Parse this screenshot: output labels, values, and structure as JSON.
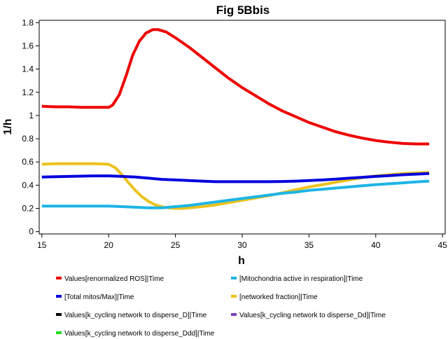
{
  "chart_data": {
    "type": "line",
    "title": "Fig 5Bbis",
    "xlabel": "h",
    "ylabel": "1/h",
    "xlim": [
      14.8,
      45.2
    ],
    "ylim": [
      -0.02,
      1.82
    ],
    "xticks": [
      15,
      20,
      25,
      30,
      35,
      40,
      45
    ],
    "yticks": [
      0,
      0.2,
      0.4,
      0.6,
      0.8,
      1,
      1.2,
      1.4,
      1.6,
      1.8
    ],
    "grid": false,
    "legend_position": "bottom",
    "series": [
      {
        "name": "Values[renormalized ROS]|Time",
        "color": "#ee0000",
        "x": [
          15,
          16,
          17,
          18,
          19,
          20,
          20.3,
          20.8,
          21.3,
          21.8,
          22.3,
          22.8,
          23.3,
          23.7,
          24.3,
          25,
          26,
          27,
          28,
          29,
          30,
          31,
          32,
          33,
          34,
          35,
          36,
          37,
          38,
          39,
          40,
          41,
          42,
          43,
          44
        ],
        "y": [
          1.08,
          1.075,
          1.075,
          1.07,
          1.07,
          1.07,
          1.09,
          1.18,
          1.34,
          1.52,
          1.64,
          1.71,
          1.74,
          1.74,
          1.72,
          1.67,
          1.59,
          1.5,
          1.41,
          1.32,
          1.24,
          1.17,
          1.1,
          1.04,
          0.99,
          0.94,
          0.9,
          0.86,
          0.83,
          0.805,
          0.785,
          0.77,
          0.76,
          0.755,
          0.755
        ]
      },
      {
        "name": "[Mitochondria active in respiration]|Time",
        "color": "#1eb4e6",
        "x": [
          15,
          17,
          19,
          20,
          21,
          22,
          23,
          24,
          25,
          26,
          27,
          28,
          29,
          30,
          31,
          32,
          33,
          34,
          35,
          36,
          37,
          38,
          39,
          40,
          41,
          42,
          43,
          44
        ],
        "y": [
          0.22,
          0.22,
          0.22,
          0.22,
          0.215,
          0.21,
          0.205,
          0.205,
          0.215,
          0.225,
          0.24,
          0.255,
          0.27,
          0.285,
          0.3,
          0.315,
          0.33,
          0.34,
          0.355,
          0.365,
          0.375,
          0.385,
          0.395,
          0.405,
          0.412,
          0.42,
          0.428,
          0.435
        ]
      },
      {
        "name": "[Total mitos/Max]|Time",
        "color": "#0000dd",
        "x": [
          15,
          17,
          19,
          20,
          21,
          22,
          23,
          24,
          25,
          26,
          27,
          28,
          29,
          30,
          31,
          32,
          33,
          34,
          35,
          36,
          37,
          38,
          39,
          40,
          41,
          42,
          43,
          44
        ],
        "y": [
          0.47,
          0.475,
          0.48,
          0.48,
          0.475,
          0.47,
          0.46,
          0.45,
          0.445,
          0.44,
          0.435,
          0.43,
          0.43,
          0.43,
          0.43,
          0.43,
          0.432,
          0.435,
          0.44,
          0.445,
          0.452,
          0.46,
          0.468,
          0.475,
          0.482,
          0.49,
          0.495,
          0.5
        ]
      },
      {
        "name": "[networked fraction]|Time",
        "color": "#ecc21c",
        "x": [
          15,
          16,
          17,
          18,
          19,
          20,
          20.5,
          21,
          21.5,
          22,
          22.5,
          23,
          23.5,
          24,
          24.5,
          25,
          25.5,
          26,
          27,
          28,
          29,
          30,
          31,
          32,
          33,
          34,
          35,
          36,
          37,
          38,
          39,
          40,
          41,
          42,
          43,
          44
        ],
        "y": [
          0.58,
          0.585,
          0.585,
          0.585,
          0.585,
          0.58,
          0.55,
          0.49,
          0.42,
          0.355,
          0.3,
          0.26,
          0.23,
          0.213,
          0.205,
          0.2,
          0.2,
          0.205,
          0.215,
          0.23,
          0.25,
          0.27,
          0.29,
          0.31,
          0.335,
          0.36,
          0.385,
          0.405,
          0.425,
          0.445,
          0.465,
          0.48,
          0.49,
          0.5,
          0.505,
          0.51
        ]
      },
      {
        "name": "Values[k_cycling network to disperse_D]|Time",
        "color": "#000000",
        "x": [],
        "y": []
      },
      {
        "name": "Values[k_cycling network to disperse_Dd]|Time",
        "color": "#7a3fbf",
        "x": [],
        "y": []
      },
      {
        "name": "Values[k_cycling network to disperse_Ddd]|Time",
        "color": "#22dd22",
        "x": [],
        "y": []
      }
    ]
  }
}
